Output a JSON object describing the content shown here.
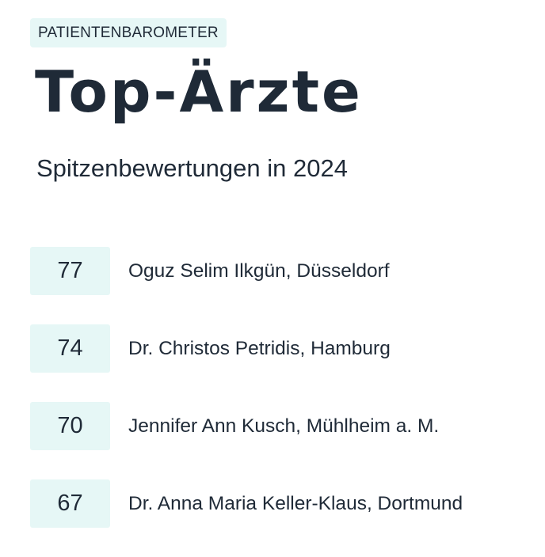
{
  "badge": "PATIENTENBAROMETER",
  "title": "Top-Ärzte",
  "subtitle": "Spitzenbewertungen in 2024",
  "ranking": [
    {
      "score": "77",
      "doctor": "Oguz Selim Ilkgün, Düsseldorf"
    },
    {
      "score": "74",
      "doctor": "Dr. Christos Petridis, Hamburg"
    },
    {
      "score": "70",
      "doctor": "Jennifer Ann Kusch, Mühlheim a. M."
    },
    {
      "score": "67",
      "doctor": "Dr. Anna Maria Keller-Klaus, Dortmund"
    }
  ],
  "colors": {
    "text": "#1f2a37",
    "accent_background": "#e6f7f6"
  }
}
